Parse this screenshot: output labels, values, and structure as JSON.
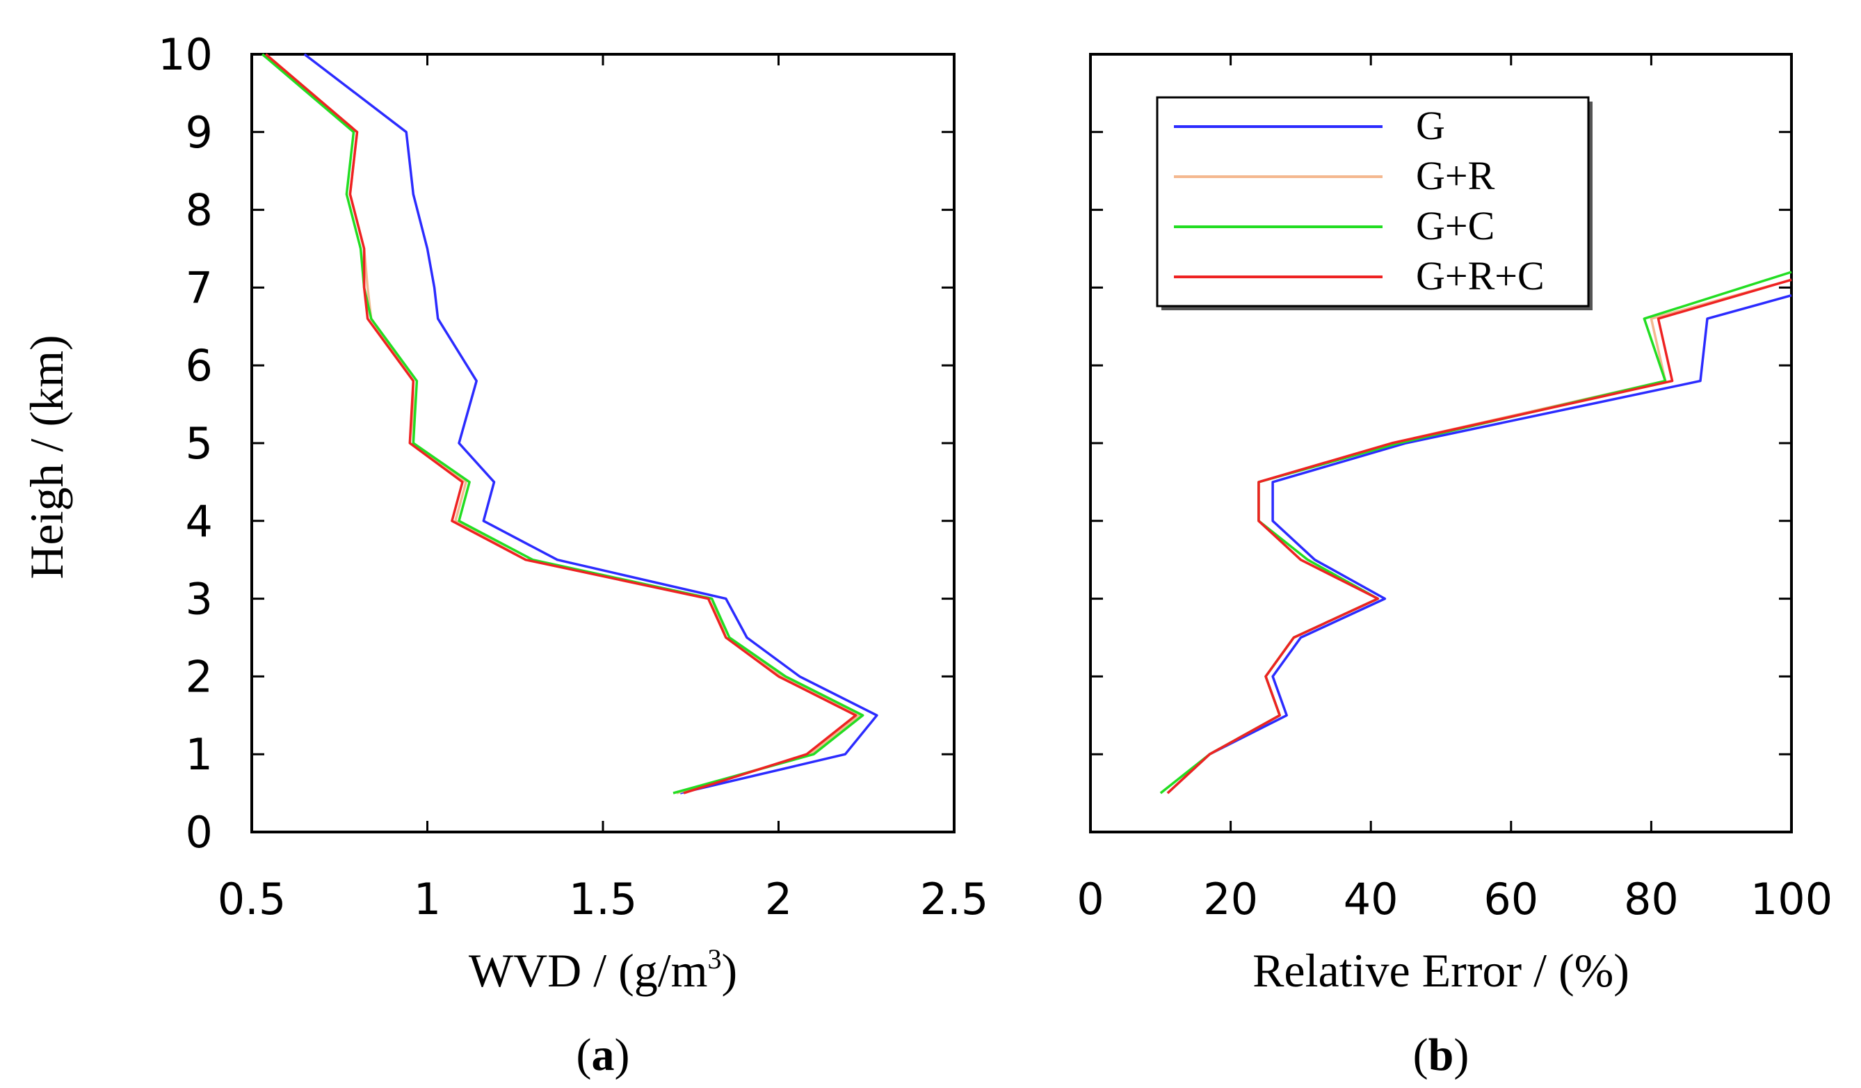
{
  "chart_data": [
    {
      "type": "line",
      "panel_label": "(a)",
      "panel_open": "(",
      "panel_letter": "a",
      "panel_close": ")",
      "xlabel": "WVD / (g/m",
      "xlabel_superscript": "3",
      "xlabel_suffix": ")",
      "ylabel": "Heigh / (km)",
      "xlim": [
        0.5,
        2.5
      ],
      "ylim": [
        0,
        10
      ],
      "x_ticks": [
        0.5,
        1,
        1.5,
        2,
        2.5
      ],
      "x_tick_labels": [
        "0.5",
        "1",
        "1.5",
        "2",
        "2.5"
      ],
      "y_ticks": [
        0,
        1,
        2,
        3,
        4,
        5,
        6,
        7,
        8,
        9,
        10
      ],
      "y_tick_labels": [
        "0",
        "1",
        "2",
        "3",
        "4",
        "5",
        "6",
        "7",
        "8",
        "9",
        "10"
      ],
      "legend": null,
      "series": [
        {
          "name": "G",
          "color": "#2b2bff",
          "points": [
            [
              1.72,
              0.5
            ],
            [
              2.19,
              1.0
            ],
            [
              2.28,
              1.5
            ],
            [
              2.06,
              2.0
            ],
            [
              1.91,
              2.5
            ],
            [
              1.85,
              3.0
            ],
            [
              1.37,
              3.5
            ],
            [
              1.16,
              4.0
            ],
            [
              1.19,
              4.5
            ],
            [
              1.09,
              5.0
            ],
            [
              1.14,
              5.8
            ],
            [
              1.03,
              6.6
            ],
            [
              1.02,
              7.0
            ],
            [
              1.0,
              7.5
            ],
            [
              0.96,
              8.2
            ],
            [
              0.94,
              9.0
            ],
            [
              0.65,
              10.0
            ]
          ]
        },
        {
          "name": "G+R",
          "color": "#f4b88f",
          "points": [
            [
              1.71,
              0.5
            ],
            [
              2.09,
              1.0
            ],
            [
              2.23,
              1.5
            ],
            [
              2.01,
              2.0
            ],
            [
              1.85,
              2.5
            ],
            [
              1.81,
              3.0
            ],
            [
              1.28,
              3.5
            ],
            [
              1.08,
              4.0
            ],
            [
              1.11,
              4.5
            ],
            [
              0.96,
              5.0
            ],
            [
              0.96,
              5.8
            ],
            [
              0.84,
              6.6
            ],
            [
              0.83,
              7.0
            ],
            [
              0.82,
              7.5
            ],
            [
              0.78,
              8.2
            ],
            [
              0.8,
              9.0
            ],
            [
              0.54,
              10.0
            ]
          ]
        },
        {
          "name": "G+C",
          "color": "#22dd22",
          "points": [
            [
              1.7,
              0.5
            ],
            [
              2.1,
              1.0
            ],
            [
              2.24,
              1.5
            ],
            [
              2.02,
              2.0
            ],
            [
              1.86,
              2.5
            ],
            [
              1.81,
              3.0
            ],
            [
              1.3,
              3.5
            ],
            [
              1.09,
              4.0
            ],
            [
              1.12,
              4.5
            ],
            [
              0.96,
              5.0
            ],
            [
              0.97,
              5.8
            ],
            [
              0.84,
              6.6
            ],
            [
              0.82,
              7.0
            ],
            [
              0.81,
              7.5
            ],
            [
              0.77,
              8.2
            ],
            [
              0.79,
              9.0
            ],
            [
              0.53,
              10.0
            ]
          ]
        },
        {
          "name": "G+R+C",
          "color": "#ee2222",
          "points": [
            [
              1.73,
              0.5
            ],
            [
              2.08,
              1.0
            ],
            [
              2.22,
              1.5
            ],
            [
              2.0,
              2.0
            ],
            [
              1.85,
              2.5
            ],
            [
              1.8,
              3.0
            ],
            [
              1.28,
              3.5
            ],
            [
              1.07,
              4.0
            ],
            [
              1.1,
              4.5
            ],
            [
              0.95,
              5.0
            ],
            [
              0.96,
              5.8
            ],
            [
              0.83,
              6.6
            ],
            [
              0.82,
              7.0
            ],
            [
              0.82,
              7.5
            ],
            [
              0.78,
              8.2
            ],
            [
              0.8,
              9.0
            ],
            [
              0.54,
              10.0
            ]
          ]
        }
      ]
    },
    {
      "type": "line",
      "panel_label": "(b)",
      "panel_open": "(",
      "panel_letter": "b",
      "panel_close": ")",
      "xlabel": "Relative Error / (%)",
      "ylabel": "",
      "xlim": [
        0,
        100
      ],
      "ylim": [
        0,
        10
      ],
      "x_ticks": [
        0,
        20,
        40,
        60,
        80,
        100
      ],
      "x_tick_labels": [
        "0",
        "20",
        "40",
        "60",
        "80",
        "100"
      ],
      "y_ticks": [
        0,
        1,
        2,
        3,
        4,
        5,
        6,
        7,
        8,
        9,
        10
      ],
      "y_tick_labels": [],
      "legend": {
        "position": "top-right",
        "entries": [
          "G",
          "G+R",
          "G+C",
          "G+R+C"
        ]
      },
      "series": [
        {
          "name": "G",
          "color": "#2b2bff",
          "points": [
            [
              11,
              0.5
            ],
            [
              17,
              1.0
            ],
            [
              28,
              1.5
            ],
            [
              26,
              2.0
            ],
            [
              30,
              2.5
            ],
            [
              42,
              3.0
            ],
            [
              32,
              3.5
            ],
            [
              26,
              4.0
            ],
            [
              26,
              4.5
            ],
            [
              45,
              5.0
            ],
            [
              87,
              5.8
            ],
            [
              88,
              6.6
            ],
            [
              100,
              6.9
            ]
          ]
        },
        {
          "name": "G+R",
          "color": "#f4b88f",
          "points": [
            [
              11,
              0.5
            ],
            [
              17,
              1.0
            ],
            [
              27,
              1.5
            ],
            [
              25,
              2.0
            ],
            [
              29,
              2.5
            ],
            [
              41,
              3.0
            ],
            [
              30,
              3.5
            ],
            [
              24,
              4.0
            ],
            [
              24,
              4.5
            ],
            [
              43,
              5.0
            ],
            [
              82,
              5.8
            ],
            [
              80,
              6.6
            ],
            [
              100,
              7.1
            ]
          ]
        },
        {
          "name": "G+C",
          "color": "#22dd22",
          "points": [
            [
              10,
              0.5
            ],
            [
              17,
              1.0
            ],
            [
              27,
              1.5
            ],
            [
              25,
              2.0
            ],
            [
              29,
              2.5
            ],
            [
              41,
              3.0
            ],
            [
              31,
              3.5
            ],
            [
              24,
              4.0
            ],
            [
              24,
              4.5
            ],
            [
              44,
              5.0
            ],
            [
              82,
              5.8
            ],
            [
              79,
              6.6
            ],
            [
              100,
              7.2
            ]
          ]
        },
        {
          "name": "G+R+C",
          "color": "#ee2222",
          "points": [
            [
              11,
              0.5
            ],
            [
              17,
              1.0
            ],
            [
              27,
              1.5
            ],
            [
              25,
              2.0
            ],
            [
              29,
              2.5
            ],
            [
              41,
              3.0
            ],
            [
              30,
              3.5
            ],
            [
              24,
              4.0
            ],
            [
              24,
              4.5
            ],
            [
              43,
              5.0
            ],
            [
              83,
              5.8
            ],
            [
              81,
              6.6
            ],
            [
              100,
              7.1
            ]
          ]
        }
      ]
    }
  ]
}
